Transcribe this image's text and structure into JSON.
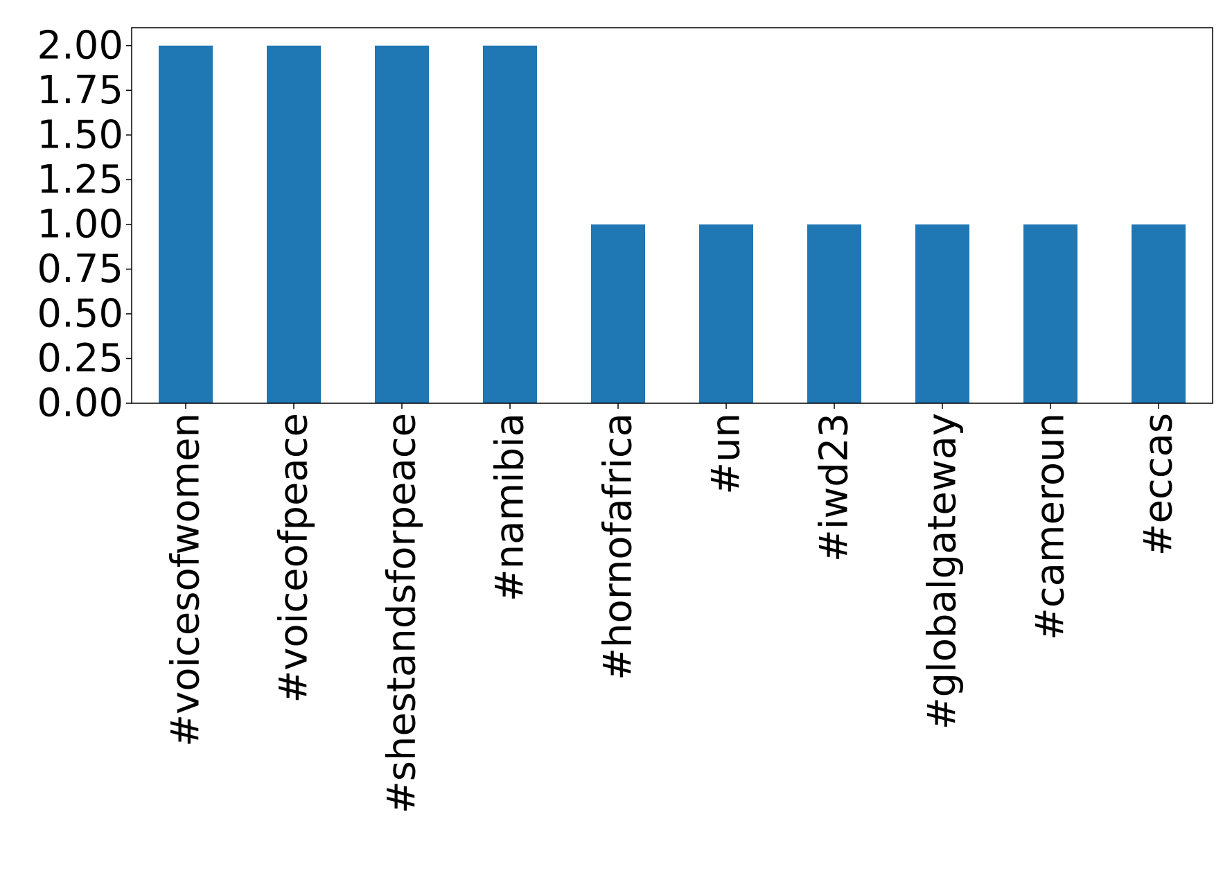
{
  "chart_data": {
    "type": "bar",
    "categories": [
      "#voicesofwomen",
      "#voiceofpeace",
      "#shestandsforpeace",
      "#namibia",
      "#hornofafrica",
      "#un",
      "#iwd23",
      "#globalgateway",
      "#cameroun",
      "#eccas"
    ],
    "values": [
      2,
      2,
      2,
      2,
      1,
      1,
      1,
      1,
      1,
      1
    ],
    "title": "",
    "xlabel": "",
    "ylabel": "",
    "ylim": [
      0,
      2.1
    ],
    "yticks": [
      "0.00",
      "0.25",
      "0.50",
      "0.75",
      "1.00",
      "1.25",
      "1.50",
      "1.75",
      "2.00"
    ],
    "bar_color": "#1f77b4",
    "grid": false,
    "legend": "none",
    "x_tick_rotation": "vertical"
  }
}
